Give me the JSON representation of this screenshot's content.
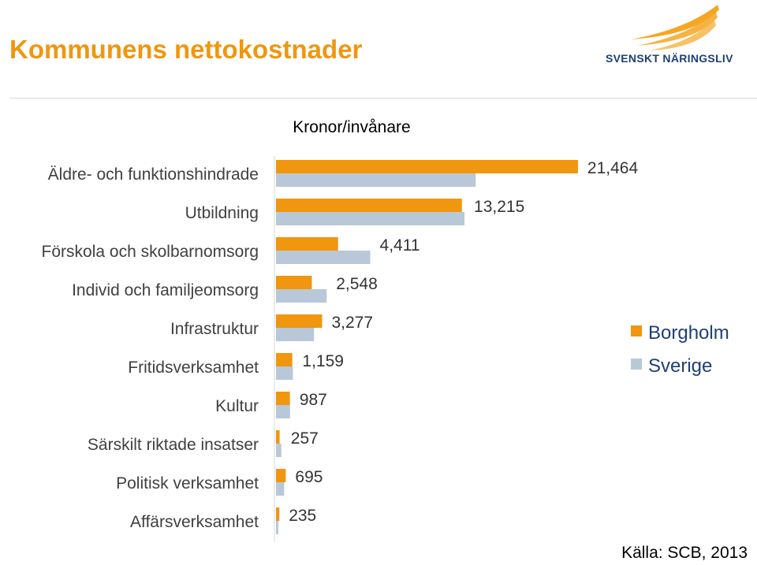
{
  "header": {
    "title": "Kommunens nettokostnader",
    "logo_text": "SVENSKT NÄRINGSLIV"
  },
  "colors": {
    "title": "#f0960f",
    "borgholm": "#f0960f",
    "sverige": "#b8c8d8",
    "logo_wings": "#f5a623",
    "logo_text": "#1f3f75"
  },
  "footer": {
    "source": "Källa: SCB, 2013"
  },
  "chart_data": {
    "type": "bar",
    "orientation": "horizontal",
    "title": "Kronor/invånare",
    "categories": [
      "Äldre- och funktionshindrade",
      "Utbildning",
      "Förskola och skolbarnomsorg",
      "Individ och familjeomsorg",
      "Infrastruktur",
      "Fritidsverksamhet",
      "Kultur",
      "Särskilt riktade insatser",
      "Politisk verksamhet",
      "Affärsverksamhet"
    ],
    "series": [
      {
        "name": "Borgholm",
        "values": [
          21464,
          13215,
          4411,
          2548,
          3277,
          1159,
          987,
          257,
          695,
          235
        ],
        "labels": [
          "21,464",
          "13,215",
          "4,411",
          "2,548",
          "3,277",
          "1,159",
          "987",
          "257",
          "695",
          "235"
        ]
      },
      {
        "name": "Sverige",
        "values": [
          14200,
          13400,
          6700,
          3600,
          2700,
          1200,
          1000,
          380,
          580,
          170
        ]
      }
    ],
    "xlim": [
      0,
      25000
    ],
    "grid": false,
    "legend": "right"
  }
}
